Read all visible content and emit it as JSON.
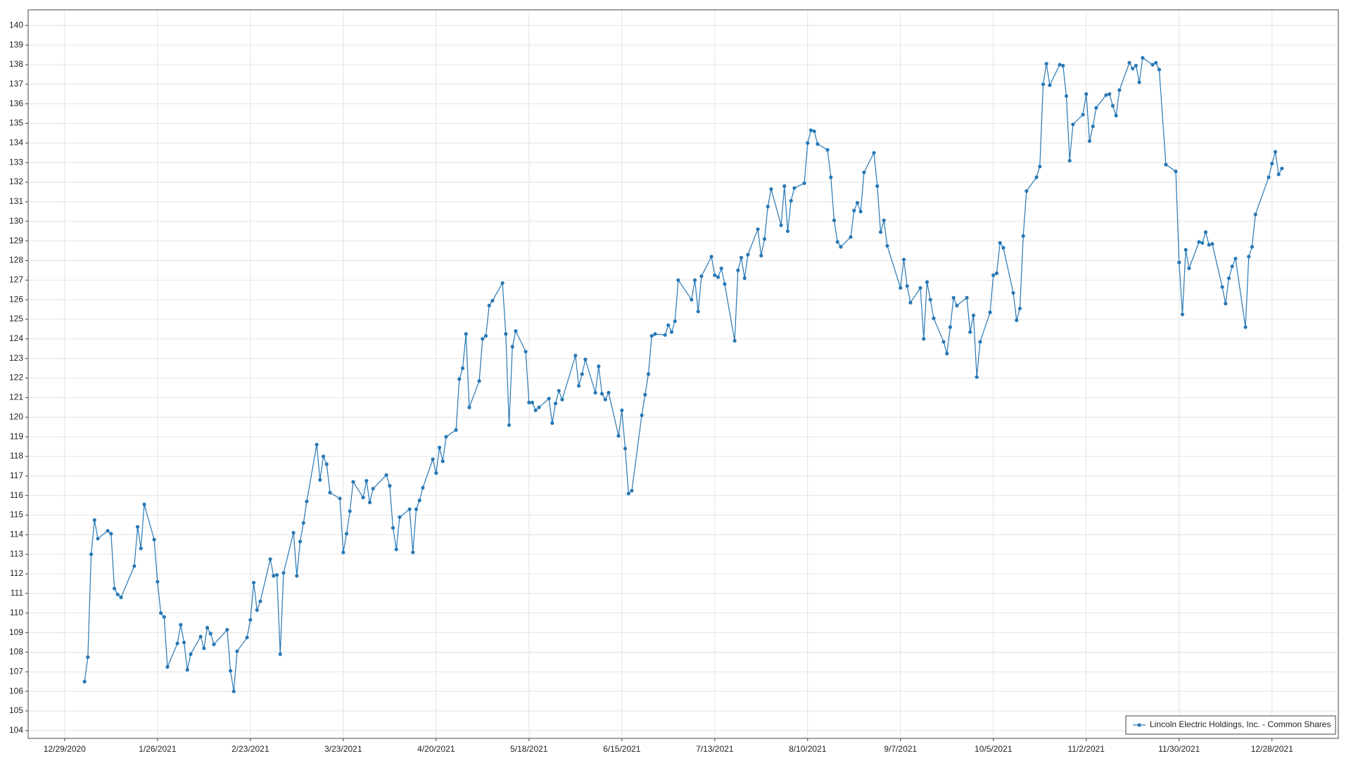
{
  "chart_data": {
    "type": "line",
    "x": [
      "1/4/2021",
      "1/5/2021",
      "1/6/2021",
      "1/7/2021",
      "1/8/2021",
      "1/11/2021",
      "1/12/2021",
      "1/13/2021",
      "1/14/2021",
      "1/15/2021",
      "1/19/2021",
      "1/20/2021",
      "1/21/2021",
      "1/22/2021",
      "1/25/2021",
      "1/26/2021",
      "1/27/2021",
      "1/28/2021",
      "1/29/2021",
      "2/1/2021",
      "2/2/2021",
      "2/3/2021",
      "2/4/2021",
      "2/5/2021",
      "2/8/2021",
      "2/9/2021",
      "2/10/2021",
      "2/11/2021",
      "2/12/2021",
      "2/16/2021",
      "2/17/2021",
      "2/18/2021",
      "2/19/2021",
      "2/22/2021",
      "2/23/2021",
      "2/24/2021",
      "2/25/2021",
      "2/26/2021",
      "3/1/2021",
      "3/2/2021",
      "3/3/2021",
      "3/4/2021",
      "3/5/2021",
      "3/8/2021",
      "3/9/2021",
      "3/10/2021",
      "3/11/2021",
      "3/12/2021",
      "3/15/2021",
      "3/16/2021",
      "3/17/2021",
      "3/18/2021",
      "3/19/2021",
      "3/22/2021",
      "3/23/2021",
      "3/24/2021",
      "3/25/2021",
      "3/26/2021",
      "3/29/2021",
      "3/30/2021",
      "3/31/2021",
      "4/1/2021",
      "4/5/2021",
      "4/6/2021",
      "4/7/2021",
      "4/8/2021",
      "4/9/2021",
      "4/12/2021",
      "4/13/2021",
      "4/14/2021",
      "4/15/2021",
      "4/16/2021",
      "4/19/2021",
      "4/20/2021",
      "4/21/2021",
      "4/22/2021",
      "4/23/2021",
      "4/26/2021",
      "4/27/2021",
      "4/28/2021",
      "4/29/2021",
      "4/30/2021",
      "5/3/2021",
      "5/4/2021",
      "5/5/2021",
      "5/6/2021",
      "5/7/2021",
      "5/10/2021",
      "5/11/2021",
      "5/12/2021",
      "5/13/2021",
      "5/14/2021",
      "5/17/2021",
      "5/18/2021",
      "5/19/2021",
      "5/20/2021",
      "5/21/2021",
      "5/24/2021",
      "5/25/2021",
      "5/26/2021",
      "5/27/2021",
      "5/28/2021",
      "6/1/2021",
      "6/2/2021",
      "6/3/2021",
      "6/4/2021",
      "6/7/2021",
      "6/8/2021",
      "6/9/2021",
      "6/10/2021",
      "6/11/2021",
      "6/14/2021",
      "6/15/2021",
      "6/16/2021",
      "6/17/2021",
      "6/18/2021",
      "6/21/2021",
      "6/22/2021",
      "6/23/2021",
      "6/24/2021",
      "6/25/2021",
      "6/28/2021",
      "6/29/2021",
      "6/30/2021",
      "7/1/2021",
      "7/2/2021",
      "7/6/2021",
      "7/7/2021",
      "7/8/2021",
      "7/9/2021",
      "7/12/2021",
      "7/13/2021",
      "7/14/2021",
      "7/15/2021",
      "7/16/2021",
      "7/19/2021",
      "7/20/2021",
      "7/21/2021",
      "7/22/2021",
      "7/23/2021",
      "7/26/2021",
      "7/27/2021",
      "7/28/2021",
      "7/29/2021",
      "7/30/2021",
      "8/2/2021",
      "8/3/2021",
      "8/4/2021",
      "8/5/2021",
      "8/6/2021",
      "8/9/2021",
      "8/10/2021",
      "8/11/2021",
      "8/12/2021",
      "8/13/2021",
      "8/16/2021",
      "8/17/2021",
      "8/18/2021",
      "8/19/2021",
      "8/20/2021",
      "8/23/2021",
      "8/24/2021",
      "8/25/2021",
      "8/26/2021",
      "8/27/2021",
      "8/30/2021",
      "8/31/2021",
      "9/1/2021",
      "9/2/2021",
      "9/3/2021",
      "9/7/2021",
      "9/8/2021",
      "9/9/2021",
      "9/10/2021",
      "9/13/2021",
      "9/14/2021",
      "9/15/2021",
      "9/16/2021",
      "9/17/2021",
      "9/20/2021",
      "9/21/2021",
      "9/22/2021",
      "9/23/2021",
      "9/24/2021",
      "9/27/2021",
      "9/28/2021",
      "9/29/2021",
      "9/30/2021",
      "10/1/2021",
      "10/4/2021",
      "10/5/2021",
      "10/6/2021",
      "10/7/2021",
      "10/8/2021",
      "10/11/2021",
      "10/12/2021",
      "10/13/2021",
      "10/14/2021",
      "10/15/2021",
      "10/18/2021",
      "10/19/2021",
      "10/20/2021",
      "10/21/2021",
      "10/22/2021",
      "10/25/2021",
      "10/26/2021",
      "10/27/2021",
      "10/28/2021",
      "10/29/2021",
      "11/1/2021",
      "11/2/2021",
      "11/3/2021",
      "11/4/2021",
      "11/5/2021",
      "11/8/2021",
      "11/9/2021",
      "11/10/2021",
      "11/11/2021",
      "11/12/2021",
      "11/15/2021",
      "11/16/2021",
      "11/17/2021",
      "11/18/2021",
      "11/19/2021",
      "11/22/2021",
      "11/23/2021",
      "11/24/2021",
      "11/26/2021",
      "11/29/2021",
      "11/30/2021",
      "12/1/2021",
      "12/2/2021",
      "12/3/2021",
      "12/6/2021",
      "12/7/2021",
      "12/8/2021",
      "12/9/2021",
      "12/10/2021",
      "12/13/2021",
      "12/14/2021",
      "12/15/2021",
      "12/16/2021",
      "12/17/2021",
      "12/20/2021",
      "12/21/2021",
      "12/22/2021",
      "12/23/2021",
      "12/27/2021",
      "12/28/2021",
      "12/29/2021",
      "12/30/2021",
      "12/31/2021"
    ],
    "series": [
      {
        "name": "Lincoln Electric Holdings, Inc. - Common Shares",
        "color": "#2878b5",
        "values": [
          106.5,
          107.75,
          113.0,
          114.75,
          113.8,
          114.2,
          114.05,
          111.25,
          110.95,
          110.8,
          112.4,
          114.4,
          113.3,
          115.55,
          113.75,
          111.6,
          110.0,
          109.8,
          107.25,
          108.45,
          109.4,
          108.5,
          107.1,
          107.9,
          108.8,
          108.2,
          109.25,
          108.95,
          108.4,
          109.15,
          107.05,
          106.0,
          108.05,
          108.75,
          109.65,
          111.55,
          110.15,
          110.6,
          112.75,
          111.9,
          111.95,
          107.9,
          112.05,
          114.1,
          111.9,
          113.65,
          114.6,
          115.7,
          118.6,
          116.8,
          118.0,
          117.6,
          116.15,
          115.85,
          113.1,
          114.05,
          115.2,
          116.7,
          115.9,
          116.75,
          115.65,
          116.35,
          117.05,
          116.5,
          114.35,
          113.25,
          114.9,
          115.3,
          113.1,
          115.3,
          115.75,
          116.4,
          117.85,
          117.15,
          118.45,
          117.75,
          119.0,
          119.35,
          121.95,
          122.5,
          124.25,
          120.5,
          121.85,
          124.0,
          124.15,
          125.7,
          125.95,
          126.85,
          124.25,
          119.6,
          123.6,
          124.4,
          123.35,
          120.75,
          120.75,
          120.35,
          120.5,
          120.95,
          119.7,
          120.7,
          121.35,
          120.9,
          123.15,
          121.6,
          122.2,
          122.95,
          121.25,
          122.6,
          121.2,
          120.9,
          121.25,
          119.05,
          120.35,
          118.4,
          116.1,
          116.25,
          120.1,
          121.15,
          122.2,
          124.15,
          124.25,
          124.2,
          124.7,
          124.35,
          124.9,
          127.0,
          126.0,
          127.0,
          125.4,
          127.2,
          128.2,
          127.25,
          127.15,
          127.6,
          126.8,
          123.9,
          127.5,
          128.15,
          127.1,
          128.3,
          129.6,
          128.25,
          129.1,
          130.75,
          131.65,
          129.8,
          131.8,
          129.5,
          131.05,
          131.7,
          131.95,
          134.0,
          134.65,
          134.6,
          133.95,
          133.65,
          132.25,
          130.05,
          128.95,
          128.7,
          129.2,
          130.55,
          130.95,
          130.5,
          132.5,
          133.5,
          131.8,
          129.45,
          130.05,
          128.75,
          126.6,
          128.05,
          126.7,
          125.85,
          126.6,
          124.0,
          126.9,
          126.0,
          125.05,
          123.85,
          123.25,
          124.6,
          126.1,
          125.7,
          126.1,
          124.35,
          125.2,
          122.05,
          123.85,
          125.35,
          127.25,
          127.35,
          128.9,
          128.65,
          126.35,
          124.95,
          125.55,
          129.25,
          131.55,
          132.25,
          132.8,
          137.0,
          138.05,
          136.95,
          138.0,
          137.95,
          136.4,
          133.1,
          134.95,
          135.45,
          136.5,
          134.1,
          134.85,
          135.8,
          136.45,
          136.5,
          135.9,
          135.4,
          136.7,
          138.1,
          137.8,
          137.95,
          137.1,
          138.35,
          138.0,
          138.1,
          137.75,
          132.9,
          132.55,
          127.9,
          125.25,
          128.55,
          127.6,
          128.95,
          128.9,
          129.45,
          128.8,
          128.85,
          126.65,
          125.8,
          127.1,
          127.7,
          128.1,
          124.6,
          128.2,
          128.7,
          130.35,
          132.25,
          132.95,
          133.55,
          132.4,
          132.7
        ]
      }
    ],
    "xlim": [
      "12/18/2020",
      "1/17/2022"
    ],
    "xticks": [
      "12/29/2020",
      "1/26/2021",
      "2/23/2021",
      "3/23/2021",
      "4/20/2021",
      "5/18/2021",
      "6/15/2021",
      "7/13/2021",
      "8/10/2021",
      "9/7/2021",
      "10/5/2021",
      "11/2/2021",
      "11/30/2021",
      "12/28/2021"
    ],
    "ylim": [
      103.6,
      140.8
    ],
    "yticks": [
      104,
      105,
      106,
      107,
      108,
      109,
      110,
      111,
      112,
      113,
      114,
      115,
      116,
      117,
      118,
      119,
      120,
      121,
      122,
      123,
      124,
      125,
      126,
      127,
      128,
      129,
      130,
      131,
      132,
      133,
      134,
      135,
      136,
      137,
      138,
      139,
      140
    ],
    "grid": true,
    "legend": "lower right"
  }
}
